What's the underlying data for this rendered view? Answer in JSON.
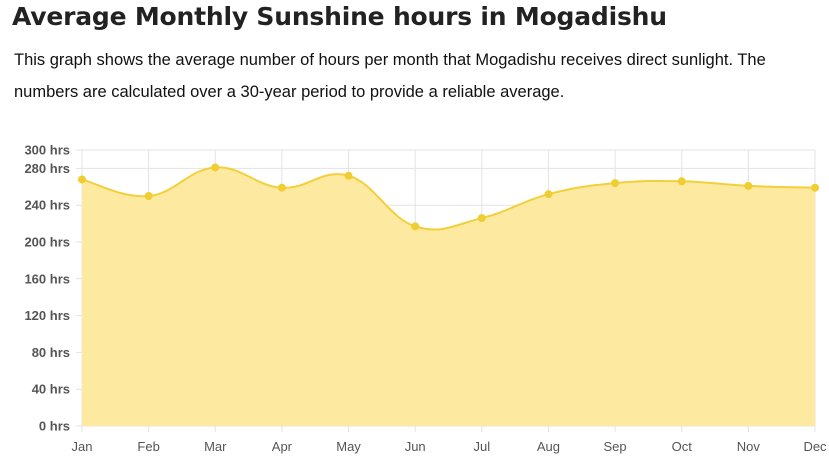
{
  "page": {
    "title": "Average Monthly Sunshine hours in Mogadishu",
    "description": "This graph shows the average number of hours per month that Mogadishu receives direct sunlight. The numbers are calculated over a 30-year period to provide a reliable average."
  },
  "colors": {
    "line": "#f2d03b",
    "fill": "#fdeaa0",
    "point": "#f0cd30",
    "grid": "#e3e3e3"
  },
  "chart_data": {
    "type": "area",
    "title": "",
    "xlabel": "",
    "ylabel": "",
    "categories": [
      "Jan",
      "Feb",
      "Mar",
      "Apr",
      "May",
      "Jun",
      "Jul",
      "Aug",
      "Sep",
      "Oct",
      "Nov",
      "Dec"
    ],
    "series": [
      {
        "name": "Sunshine hours",
        "values": [
          268,
          250,
          281,
          259,
          272,
          217,
          226,
          252,
          264,
          266,
          261,
          259
        ]
      }
    ],
    "ylim": [
      0,
      300
    ],
    "yticks": [
      0,
      40,
      80,
      120,
      160,
      200,
      240,
      280,
      300
    ],
    "ytick_labels": [
      "0 hrs",
      "40 hrs",
      "80 hrs",
      "120 hrs",
      "160 hrs",
      "200 hrs",
      "240 hrs",
      "280 hrs",
      "300 hrs"
    ],
    "grid": true,
    "smooth": true
  }
}
